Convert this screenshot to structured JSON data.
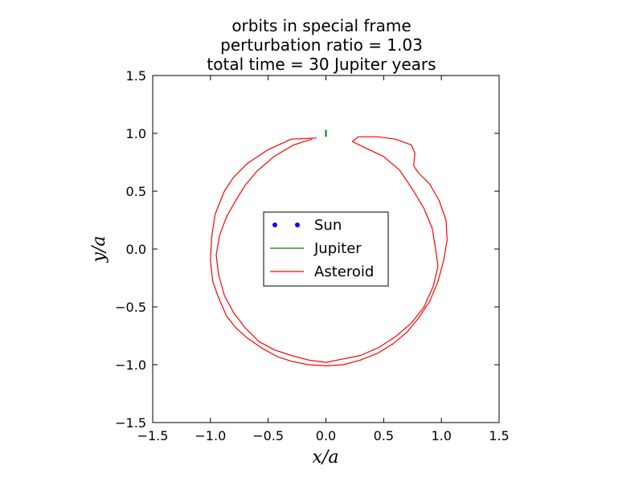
{
  "chart_data": {
    "type": "line",
    "title_lines": [
      "orbits in special frame",
      "perturbation ratio = 1.03",
      "total time = 30 Jupiter years"
    ],
    "xlabel": "x/a",
    "ylabel": "y/a",
    "xlim": [
      -1.5,
      1.5
    ],
    "ylim": [
      -1.5,
      1.5
    ],
    "xticks": [
      -1.5,
      -1.0,
      -0.5,
      0.0,
      0.5,
      1.0,
      1.5
    ],
    "yticks": [
      -1.5,
      -1.0,
      -0.5,
      0.0,
      0.5,
      1.0,
      1.5
    ],
    "xtick_labels": [
      "−1.5",
      "−1.0",
      "−0.5",
      "0.0",
      "0.5",
      "1.0",
      "1.5"
    ],
    "ytick_labels": [
      "−1.5",
      "−1.0",
      "−0.5",
      "0.0",
      "0.5",
      "1.0",
      "1.5"
    ],
    "grid": false,
    "legend_position": "center",
    "series": [
      {
        "name": "Sun",
        "style": "dots",
        "color": "#0000ff",
        "points": []
      },
      {
        "name": "Jupiter",
        "style": "line",
        "color": "#008000",
        "points": [
          [
            0.0,
            0.97
          ],
          [
            0.0,
            1.03
          ]
        ]
      },
      {
        "name": "Asteroid",
        "style": "line",
        "color": "#ff0000",
        "points": [
          [
            -0.08,
            0.96
          ],
          [
            -0.3,
            0.95
          ],
          [
            -0.5,
            0.86
          ],
          [
            -0.68,
            0.74
          ],
          [
            -0.8,
            0.62
          ],
          [
            -0.88,
            0.5
          ],
          [
            -0.96,
            0.3
          ],
          [
            -0.99,
            0.1
          ],
          [
            -1.0,
            -0.1
          ],
          [
            -0.98,
            -0.28
          ],
          [
            -0.93,
            -0.42
          ],
          [
            -0.86,
            -0.58
          ],
          [
            -0.78,
            -0.68
          ],
          [
            -0.68,
            -0.77
          ],
          [
            -0.55,
            -0.86
          ],
          [
            -0.42,
            -0.93
          ],
          [
            -0.3,
            -0.97
          ],
          [
            -0.15,
            -1.0
          ],
          [
            0.0,
            -1.01
          ],
          [
            0.15,
            -1.0
          ],
          [
            0.3,
            -0.96
          ],
          [
            0.45,
            -0.9
          ],
          [
            0.58,
            -0.82
          ],
          [
            0.7,
            -0.72
          ],
          [
            0.8,
            -0.6
          ],
          [
            0.9,
            -0.45
          ],
          [
            0.97,
            -0.28
          ],
          [
            1.02,
            -0.1
          ],
          [
            1.05,
            0.08
          ],
          [
            1.04,
            0.25
          ],
          [
            0.98,
            0.42
          ],
          [
            0.9,
            0.56
          ],
          [
            0.8,
            0.66
          ],
          [
            0.76,
            0.72
          ],
          [
            0.77,
            0.83
          ],
          [
            0.74,
            0.9
          ],
          [
            0.6,
            0.95
          ],
          [
            0.45,
            0.97
          ],
          [
            0.28,
            0.97
          ],
          [
            0.23,
            0.93
          ],
          [
            0.33,
            0.88
          ],
          [
            0.5,
            0.8
          ],
          [
            0.64,
            0.68
          ],
          [
            0.76,
            0.5
          ],
          [
            0.85,
            0.35
          ],
          [
            0.92,
            0.18
          ],
          [
            0.95,
            0.0
          ],
          [
            0.97,
            -0.15
          ],
          [
            0.93,
            -0.32
          ],
          [
            0.85,
            -0.5
          ],
          [
            0.74,
            -0.64
          ],
          [
            0.6,
            -0.76
          ],
          [
            0.46,
            -0.85
          ],
          [
            0.3,
            -0.92
          ],
          [
            0.15,
            -0.95
          ],
          [
            0.0,
            -0.98
          ],
          [
            -0.15,
            -0.96
          ],
          [
            -0.3,
            -0.92
          ],
          [
            -0.45,
            -0.87
          ],
          [
            -0.58,
            -0.8
          ],
          [
            -0.7,
            -0.68
          ],
          [
            -0.8,
            -0.55
          ],
          [
            -0.88,
            -0.4
          ],
          [
            -0.93,
            -0.22
          ],
          [
            -0.95,
            -0.05
          ],
          [
            -0.92,
            0.12
          ],
          [
            -0.86,
            0.28
          ],
          [
            -0.78,
            0.42
          ],
          [
            -0.7,
            0.55
          ],
          [
            -0.6,
            0.67
          ],
          [
            -0.45,
            0.8
          ],
          [
            -0.28,
            0.9
          ],
          [
            -0.12,
            0.95
          ]
        ]
      }
    ]
  }
}
